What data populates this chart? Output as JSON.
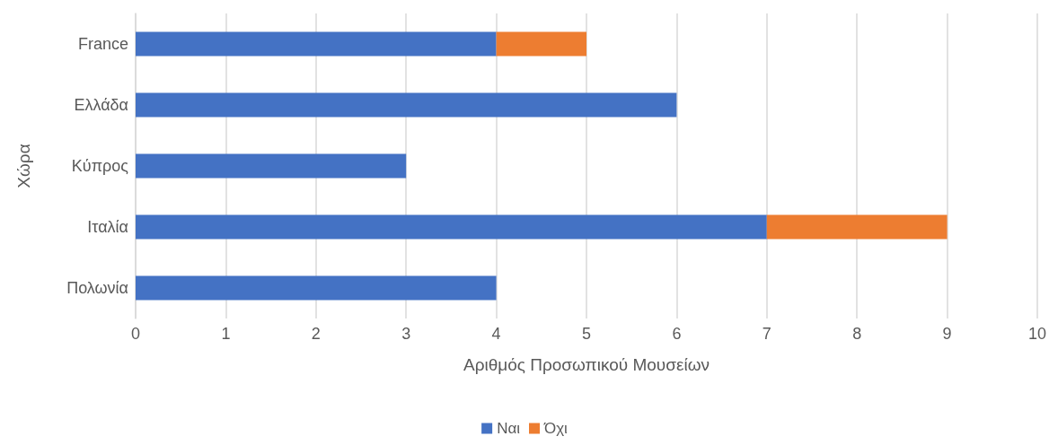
{
  "chart_data": {
    "type": "bar",
    "orientation": "horizontal",
    "stacked": true,
    "categories": [
      "France",
      "Ελλάδα",
      "Κύπρος",
      "Ιταλία",
      "Πολωνία"
    ],
    "series": [
      {
        "name": "Ναι",
        "color": "#4472c4",
        "values": [
          4,
          6,
          3,
          7,
          4
        ]
      },
      {
        "name": "Όχι",
        "color": "#ed7d31",
        "values": [
          1,
          null,
          null,
          2,
          null
        ]
      }
    ],
    "xlabel": "Αριθμός Προσωπικού Μουσείων",
    "ylabel": "Χώρα",
    "xlim": [
      0,
      10
    ],
    "xticks": [
      0,
      1,
      2,
      3,
      4,
      5,
      6,
      7,
      8,
      9,
      10
    ],
    "grid": "x",
    "legend": "bottom"
  }
}
